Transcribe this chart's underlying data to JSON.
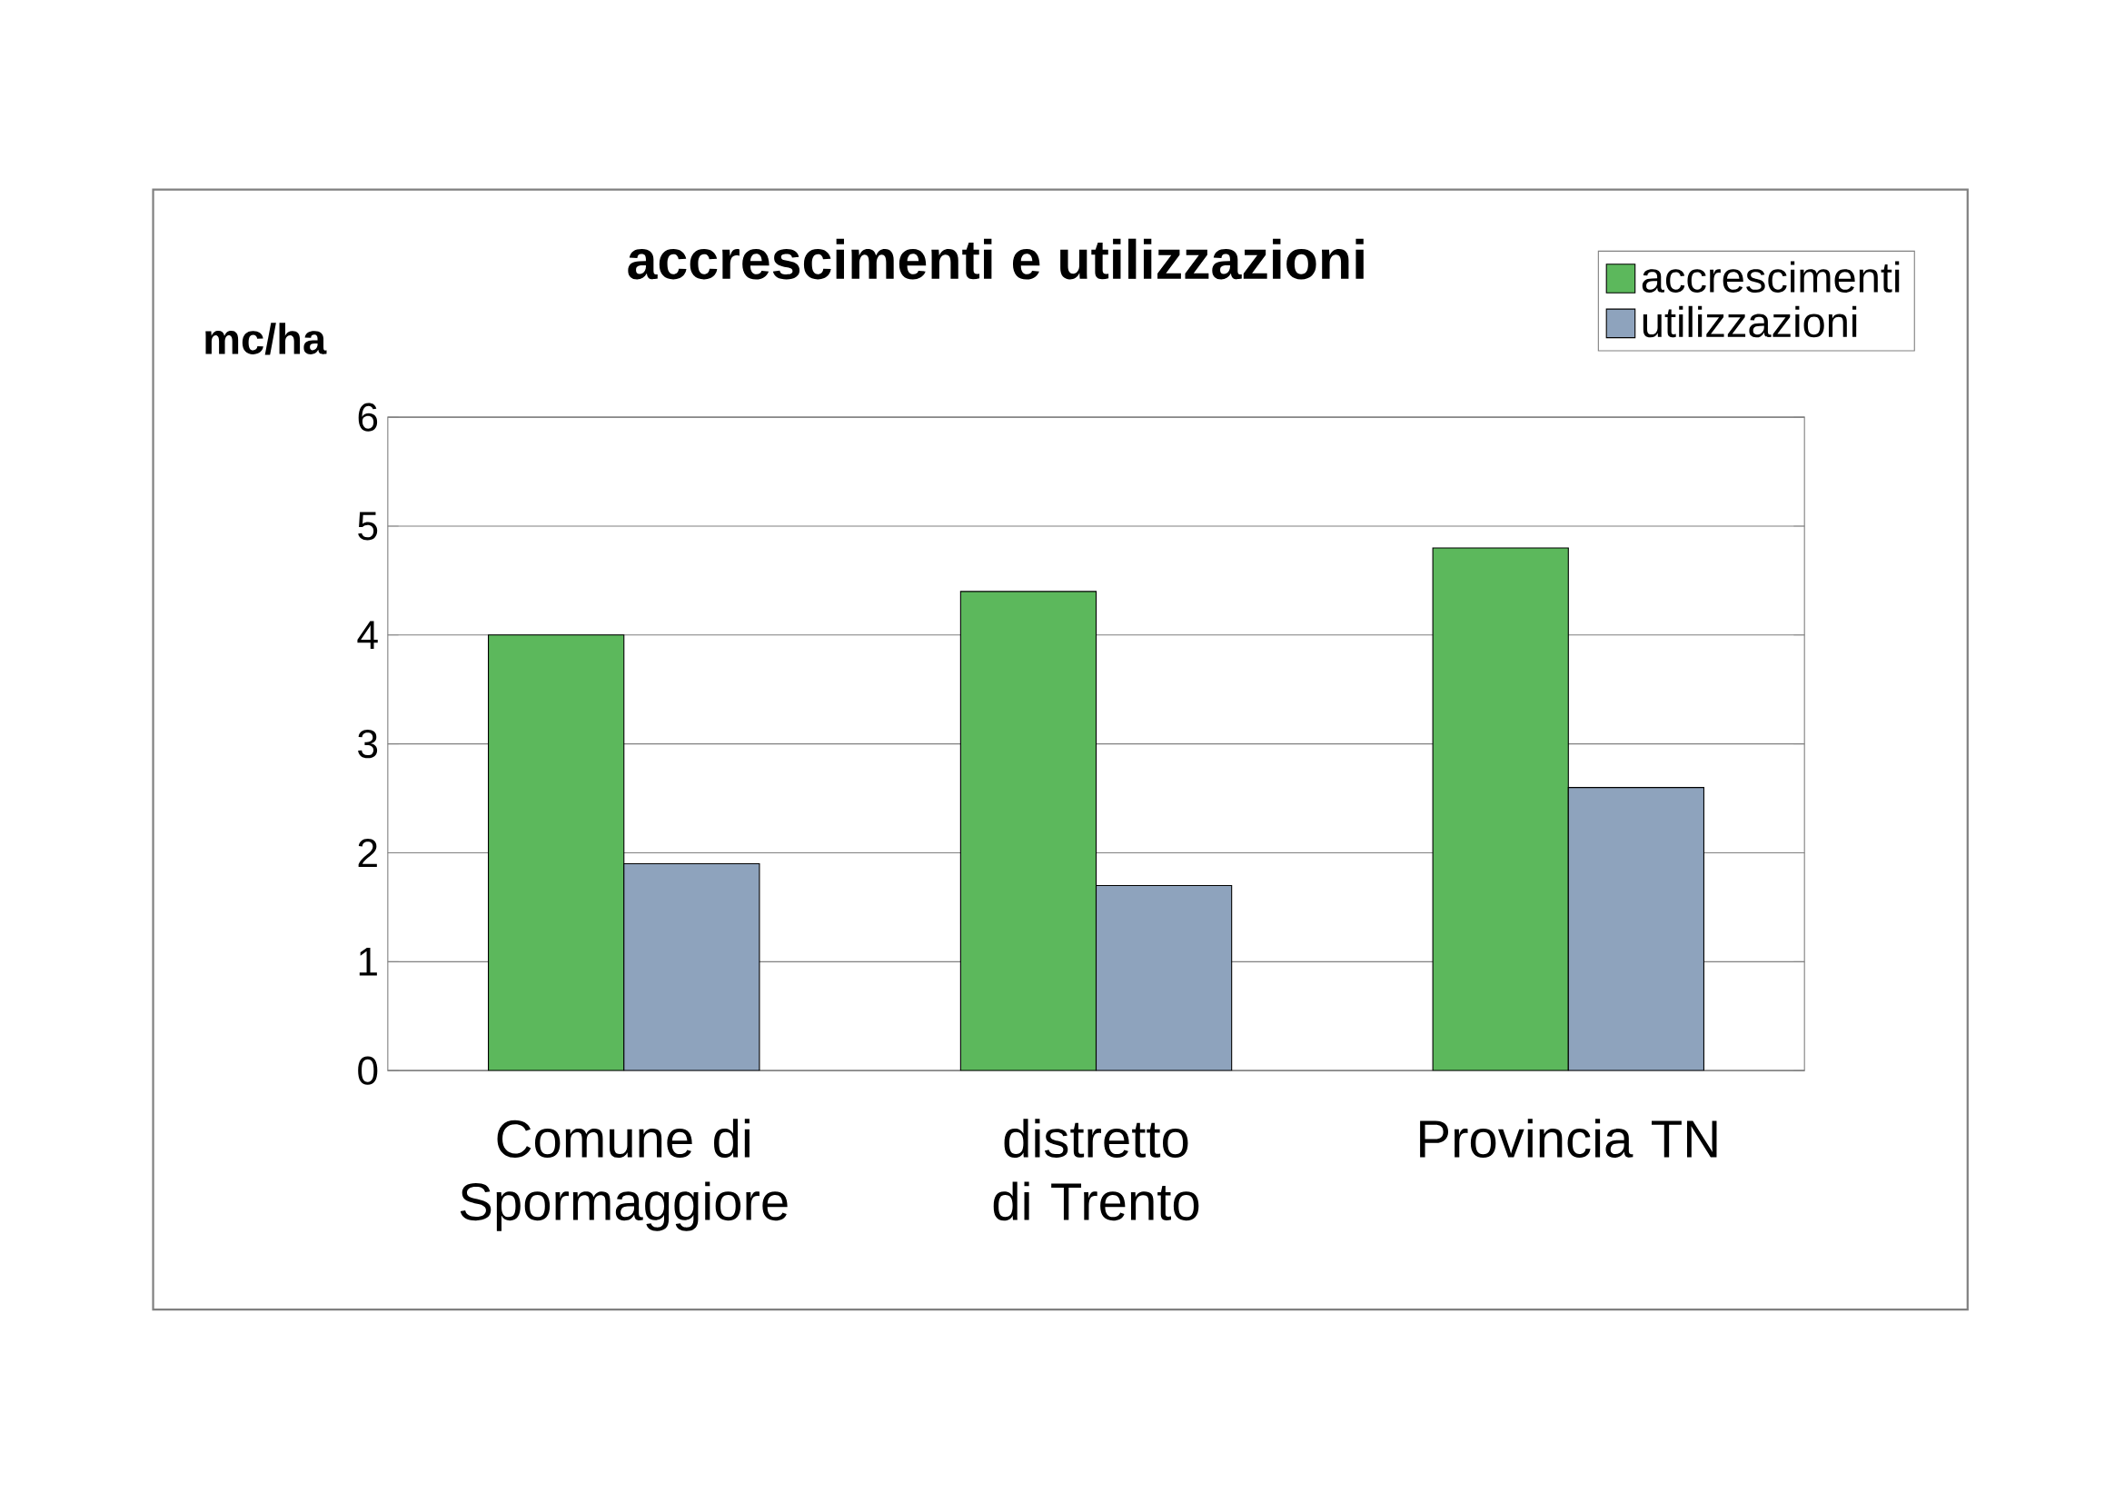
{
  "chart_data": {
    "type": "bar",
    "title": "accrescimenti e utilizzazioni",
    "ylabel": "mc/ha",
    "categories": [
      "Comune di Spormaggiore",
      "distretto di Trento",
      "Provincia TN"
    ],
    "series": [
      {
        "name": "accrescimenti",
        "color": "#5cb85c",
        "values": [
          4.0,
          4.4,
          4.8
        ]
      },
      {
        "name": "utilizzazioni",
        "color": "#8ea3bd",
        "values": [
          1.9,
          1.7,
          2.6
        ]
      }
    ],
    "ylim": [
      0,
      6
    ],
    "yticks": [
      0,
      1,
      2,
      3,
      4,
      5,
      6
    ],
    "grid": "y",
    "legend": "top right"
  }
}
